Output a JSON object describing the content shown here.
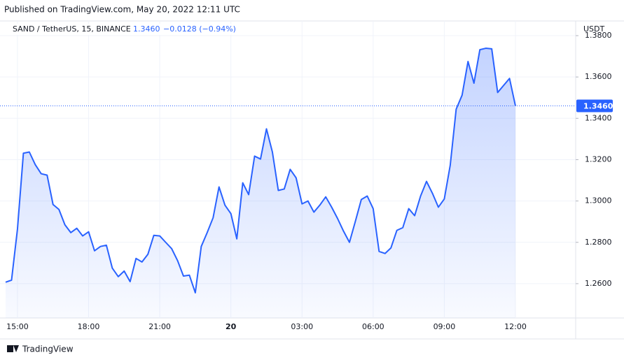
{
  "header": {
    "published": "Published on TradingView.com, May 20, 2022 12:11 UTC",
    "symbol": "SAND / TetherUS, 15, BINANCE",
    "price": "1.3460",
    "change": "−0.0128 (−0.94%)",
    "currency": "USDT",
    "logo": "TradingView"
  },
  "chart_data": {
    "type": "area",
    "color": "#2962ff",
    "grid": true,
    "categories": [
      null,
      null,
      "15:00",
      null,
      null,
      null,
      null,
      null,
      null,
      null,
      null,
      null,
      null,
      null,
      "18:00",
      null,
      null,
      null,
      null,
      null,
      null,
      null,
      null,
      null,
      null,
      null,
      "21:00",
      null,
      null,
      null,
      null,
      null,
      null,
      null,
      null,
      null,
      null,
      null,
      "20",
      null,
      null,
      null,
      null,
      null,
      null,
      null,
      null,
      null,
      null,
      null,
      "03:00",
      null,
      null,
      null,
      null,
      null,
      null,
      null,
      null,
      null,
      null,
      null,
      "06:00",
      null,
      null,
      null,
      null,
      null,
      null,
      null,
      null,
      null,
      null,
      null,
      "09:00",
      null,
      null,
      null,
      null,
      null,
      null,
      null,
      null,
      null,
      null,
      null,
      "12:00"
    ],
    "values": [
      1.2607,
      1.2617,
      1.2864,
      1.3231,
      1.3237,
      1.3176,
      1.3132,
      1.3125,
      1.2983,
      1.2959,
      1.2885,
      1.2847,
      1.2868,
      1.2831,
      1.2851,
      1.2759,
      1.278,
      1.2786,
      1.2675,
      1.2634,
      1.2661,
      1.261,
      1.2722,
      1.2705,
      1.2742,
      1.2834,
      1.2831,
      1.28,
      1.277,
      1.2712,
      1.2637,
      1.2641,
      1.2556,
      1.278,
      1.2847,
      1.2919,
      1.3068,
      1.298,
      1.2939,
      1.2817,
      1.3088,
      1.3031,
      1.3217,
      1.3203,
      1.3349,
      1.3237,
      1.3051,
      1.3058,
      1.3153,
      1.3112,
      1.2986,
      1.3,
      1.2946,
      1.298,
      1.302,
      1.297,
      1.2915,
      1.2854,
      1.28,
      1.2902,
      1.3007,
      1.3024,
      1.2963,
      1.2756,
      1.2746,
      1.2773,
      1.2858,
      1.2871,
      1.2963,
      1.2929,
      1.3024,
      1.3095,
      1.3037,
      1.297,
      1.301,
      1.3173,
      1.3444,
      1.3512,
      1.3675,
      1.357,
      1.3732,
      1.3739,
      1.3736,
      1.3525,
      1.3559,
      1.3593,
      1.346
    ],
    "ylim": [
      1.2434,
      1.38
    ],
    "yticks": [
      {
        "value": 1.26,
        "label": "1.2600"
      },
      {
        "value": 1.28,
        "label": "1.2800"
      },
      {
        "value": 1.3,
        "label": "1.3000"
      },
      {
        "value": 1.32,
        "label": "1.3200"
      },
      {
        "value": 1.34,
        "label": "1.3400"
      },
      {
        "value": 1.36,
        "label": "1.3600"
      },
      {
        "value": 1.38,
        "label": "1.3800"
      }
    ]
  }
}
